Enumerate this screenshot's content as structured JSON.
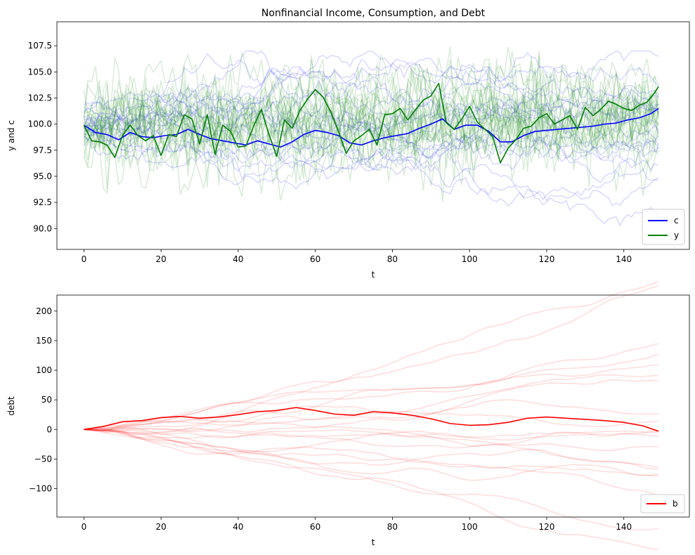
{
  "chart_data": [
    {
      "type": "line",
      "title": "Nonfinancial Income, Consumption, and Debt",
      "xlabel": "t",
      "ylabel": "y and c",
      "xlim": [
        -7,
        157
      ],
      "ylim": [
        88.0,
        109.8
      ],
      "xticks": [
        0,
        20,
        40,
        60,
        80,
        100,
        120,
        140
      ],
      "xtick_labels": [
        "0",
        "20",
        "40",
        "60",
        "80",
        "100",
        "120",
        "140"
      ],
      "yticks": [
        90.0,
        92.5,
        95.0,
        97.5,
        100.0,
        102.5,
        105.0,
        107.5
      ],
      "ytick_labels": [
        "90.0",
        "92.5",
        "95.0",
        "97.5",
        "100.0",
        "102.5",
        "105.0",
        "107.5"
      ],
      "grid": false,
      "legend_position": "lower-right",
      "legend": [
        {
          "label": "c",
          "color": "#0000ff"
        },
        {
          "label": "y",
          "color": "#008000"
        }
      ],
      "series": [
        {
          "name": "c",
          "color": "#0000ff",
          "x": [
            0,
            3,
            6,
            9,
            12,
            15,
            18,
            21,
            24,
            27,
            30,
            33,
            36,
            39,
            42,
            45,
            48,
            51,
            54,
            57,
            60,
            63,
            66,
            69,
            72,
            75,
            78,
            81,
            84,
            87,
            90,
            93,
            96,
            99,
            102,
            105,
            108,
            111,
            114,
            117,
            120,
            123,
            126,
            129,
            132,
            135,
            138,
            141,
            144,
            147,
            149
          ],
          "values": [
            99.9,
            99.2,
            99.0,
            98.5,
            99.2,
            98.8,
            98.7,
            98.9,
            99.0,
            99.5,
            99.0,
            98.6,
            98.4,
            98.2,
            98.0,
            98.4,
            98.1,
            97.8,
            98.3,
            99.0,
            99.4,
            99.2,
            98.9,
            98.2,
            98.0,
            98.4,
            98.7,
            98.9,
            99.1,
            99.6,
            100.0,
            100.5,
            99.5,
            99.9,
            99.9,
            99.3,
            98.3,
            98.3,
            98.9,
            99.3,
            99.4,
            99.5,
            99.6,
            99.7,
            99.8,
            100.0,
            100.1,
            100.4,
            100.6,
            101.0,
            101.5
          ]
        },
        {
          "name": "y",
          "color": "#008000",
          "x": [
            0,
            2,
            4,
            6,
            8,
            10,
            12,
            14,
            16,
            18,
            20,
            22,
            24,
            26,
            28,
            30,
            32,
            34,
            36,
            38,
            40,
            42,
            44,
            46,
            48,
            50,
            52,
            54,
            56,
            58,
            60,
            62,
            64,
            66,
            68,
            70,
            72,
            74,
            76,
            78,
            80,
            82,
            84,
            86,
            88,
            90,
            92,
            94,
            96,
            98,
            100,
            102,
            104,
            106,
            108,
            110,
            112,
            114,
            116,
            118,
            120,
            122,
            124,
            126,
            128,
            130,
            132,
            134,
            136,
            138,
            140,
            142,
            144,
            146,
            148,
            149
          ],
          "values": [
            99.9,
            98.4,
            98.3,
            98.0,
            96.8,
            98.9,
            99.9,
            98.9,
            98.4,
            98.9,
            97.0,
            99.0,
            98.8,
            100.9,
            100.5,
            98.1,
            100.9,
            97.1,
            99.9,
            99.3,
            97.8,
            97.9,
            99.8,
            101.4,
            99.0,
            96.9,
            100.4,
            99.6,
            101.3,
            102.4,
            103.3,
            102.6,
            101.2,
            99.3,
            97.2,
            98.4,
            98.9,
            99.5,
            98.0,
            100.9,
            101.0,
            101.5,
            100.4,
            101.4,
            102.3,
            102.7,
            103.9,
            100.1,
            99.5,
            100.5,
            101.7,
            100.2,
            99.5,
            98.8,
            96.3,
            97.7,
            98.5,
            99.6,
            99.8,
            100.6,
            101.0,
            100.0,
            100.4,
            100.8,
            99.5,
            101.6,
            100.8,
            101.4,
            102.2,
            101.9,
            101.5,
            101.3,
            101.8,
            102.1,
            103.0,
            103.6
          ]
        }
      ]
    },
    {
      "type": "line",
      "title": "",
      "xlabel": "t",
      "ylabel": "debt",
      "xlim": [
        -7,
        157
      ],
      "ylim": [
        -148,
        227
      ],
      "xticks": [
        0,
        20,
        40,
        60,
        80,
        100,
        120,
        140
      ],
      "xtick_labels": [
        "0",
        "20",
        "40",
        "60",
        "80",
        "100",
        "120",
        "140"
      ],
      "yticks": [
        -100,
        -50,
        0,
        50,
        100,
        150,
        200
      ],
      "ytick_labels": [
        "−100",
        "−50",
        "0",
        "50",
        "100",
        "150",
        "200"
      ],
      "grid": false,
      "legend_position": "lower-right",
      "legend": [
        {
          "label": "b",
          "color": "#ff0000"
        }
      ],
      "series": [
        {
          "name": "b",
          "color": "#ff0000",
          "x": [
            0,
            5,
            10,
            15,
            20,
            25,
            30,
            35,
            40,
            45,
            50,
            55,
            60,
            65,
            70,
            75,
            80,
            85,
            90,
            95,
            100,
            105,
            110,
            115,
            120,
            125,
            130,
            135,
            140,
            145,
            149
          ],
          "values": [
            0,
            5,
            13,
            15,
            20,
            22,
            19,
            21,
            25,
            30,
            32,
            37,
            32,
            26,
            24,
            30,
            28,
            24,
            18,
            10,
            7,
            8,
            12,
            19,
            21,
            19,
            17,
            15,
            12,
            6,
            -3
          ]
        }
      ]
    }
  ]
}
